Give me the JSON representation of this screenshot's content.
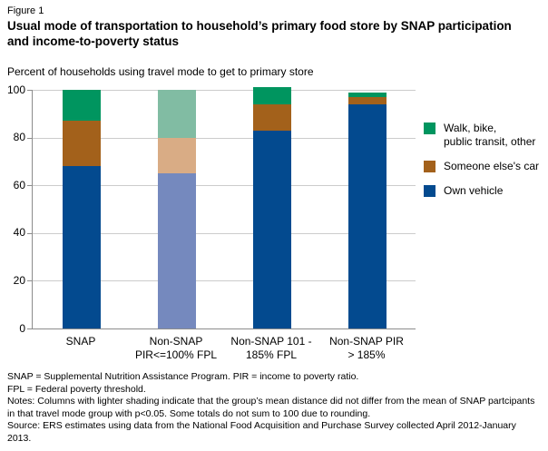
{
  "figure_label": "Figure 1",
  "title_line1": "Usual mode of transportation to household’s primary food store by SNAP participation",
  "title_line2": "and income-to-poverty status",
  "chart_data": {
    "type": "bar",
    "stacked": true,
    "y_axis_title": "Percent of households using travel mode to get to primary store",
    "ylim": [
      0,
      100
    ],
    "y_ticks": [
      0,
      20,
      40,
      60,
      80,
      100
    ],
    "grid": true,
    "legend_position": "right",
    "categories": [
      "SNAP",
      "Non-SNAP\nPIR<=100% FPL",
      "Non-SNAP 101 -\n185% FPL",
      "Non-SNAP PIR\n> 185%"
    ],
    "category_shading": [
      "dark",
      "light",
      "dark",
      "dark"
    ],
    "series": [
      {
        "name": "Own vehicle",
        "color": "#034A8F",
        "light_color": "#7589BE",
        "values": [
          68,
          65,
          83,
          94
        ]
      },
      {
        "name": "Someone else's car",
        "color": "#A3611B",
        "light_color": "#D9AC85",
        "values": [
          19,
          15,
          11,
          3
        ]
      },
      {
        "name": "Walk, bike, public transit, other",
        "color": "#00955F",
        "light_color": "#81BCA3",
        "values": [
          13,
          20,
          7,
          2
        ]
      }
    ],
    "legend": [
      {
        "label": "Walk, bike,\npublic transit, other",
        "color": "#00955F"
      },
      {
        "label": "Someone else's car",
        "color": "#A3611B"
      },
      {
        "label": "Own vehicle",
        "color": "#034A8F"
      }
    ]
  },
  "footnotes": [
    "SNAP = Supplemental Nutrition Assistance Program. PIR = income to poverty ratio.",
    "FPL = Federal poverty threshold.",
    "Notes: Columns with lighter shading indicate that the group’s mean distance did not differ from the mean of SNAP partcipants in that travel mode group with p<0.05. Some totals do not sum to 100 due to rounding.",
    "Source: ERS estimates using data from the National Food Acquisition and Purchase Survey collected April 2012-January 2013."
  ]
}
